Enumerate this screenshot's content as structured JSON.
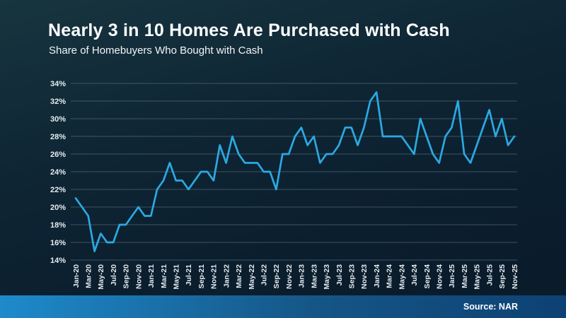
{
  "header": {
    "title": "Nearly 3 in 10 Homes Are Purchased with Cash",
    "subtitle": "Share of Homebuyers Who Bought with Cash"
  },
  "footer": {
    "source": "Source: NAR"
  },
  "colors": {
    "background": "#0d2333",
    "line": "#2BA9E2",
    "grid": "#6b7b86",
    "title_text": "#FFFFFF",
    "tick_text": "#E6ECF0",
    "footer_gradient_left": "#1E8ACB",
    "footer_gradient_right": "#0E4173"
  },
  "chart_data": {
    "type": "line",
    "title": "Nearly 3 in 10 Homes Are Purchased with Cash",
    "subtitle": "Share of Homebuyers Who Bought with Cash",
    "source": "Source: NAR",
    "legend": "none",
    "grid": true,
    "x_tick_every": 2,
    "y_axis": {
      "min": 14,
      "max": 34,
      "step": 2,
      "tick_format": "percent"
    },
    "y_tick_labels": [
      "14%",
      "16%",
      "18%",
      "20%",
      "22%",
      "24%",
      "26%",
      "28%",
      "30%",
      "32%",
      "34%"
    ],
    "x": [
      "Jan-20",
      "Feb-20",
      "Mar-20",
      "Apr-20",
      "May-20",
      "Jun-20",
      "Jul-20",
      "Aug-20",
      "Sep-20",
      "Oct-20",
      "Nov-20",
      "Dec-20",
      "Jan-21",
      "Feb-21",
      "Mar-21",
      "Apr-21",
      "May-21",
      "Jun-21",
      "Jul-21",
      "Aug-21",
      "Sep-21",
      "Oct-21",
      "Nov-21",
      "Dec-21",
      "Jan-22",
      "Feb-22",
      "Mar-22",
      "Apr-22",
      "May-22",
      "Jun-22",
      "Jul-22",
      "Aug-22",
      "Sep-22",
      "Oct-22",
      "Nov-22",
      "Dec-22",
      "Jan-23",
      "Feb-23",
      "Mar-23",
      "Apr-23",
      "May-23",
      "Jun-23",
      "Jul-23",
      "Aug-23",
      "Sep-23",
      "Oct-23",
      "Nov-23",
      "Dec-23",
      "Jan-24",
      "Feb-24",
      "Mar-24",
      "Apr-24",
      "May-24",
      "Jun-24",
      "Jul-24",
      "Aug-24",
      "Sep-24",
      "Oct-24",
      "Nov-24",
      "Dec-24",
      "Jan-25",
      "Feb-25",
      "Mar-25",
      "Apr-25",
      "May-25",
      "Jun-25",
      "Jul-25",
      "Aug-25",
      "Sep-25",
      "Oct-25",
      "Nov-25"
    ],
    "values": [
      21,
      20,
      19,
      15,
      17,
      16,
      16,
      18,
      18,
      19,
      20,
      19,
      19,
      22,
      23,
      25,
      23,
      23,
      22,
      23,
      24,
      24,
      23,
      27,
      25,
      28,
      26,
      25,
      25,
      25,
      24,
      24,
      22,
      26,
      26,
      28,
      29,
      27,
      28,
      25,
      26,
      26,
      27,
      29,
      29,
      27,
      29,
      32,
      33,
      28,
      28,
      28,
      28,
      27,
      26,
      30,
      28,
      26,
      25,
      28,
      29,
      32,
      26,
      25,
      27,
      29,
      31,
      28,
      30,
      27,
      28
    ]
  }
}
